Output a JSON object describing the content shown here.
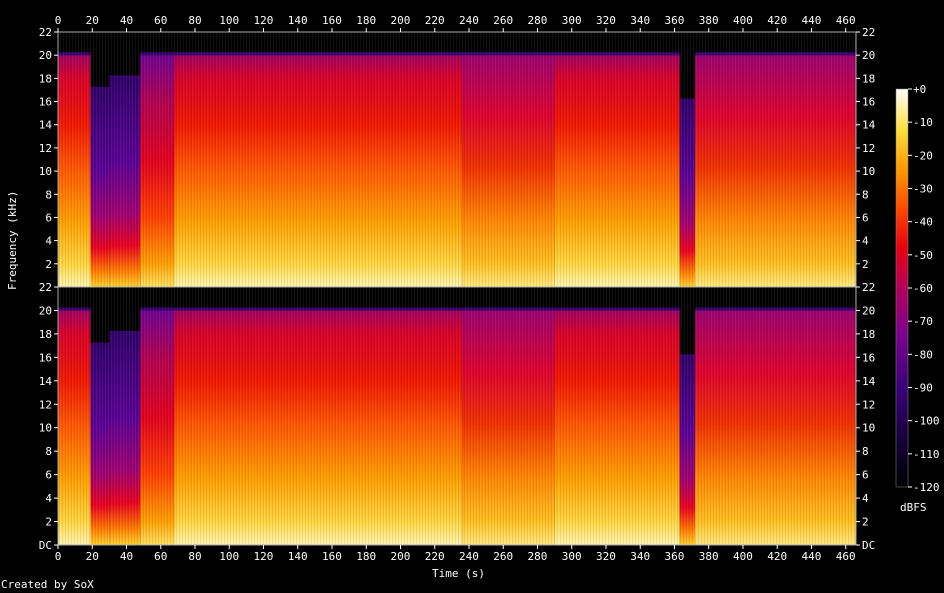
{
  "chart_data": {
    "type": "heatmap",
    "title": "",
    "xlabel": "Time (s)",
    "ylabel": "Frequency (kHz)",
    "xlim": [
      0,
      466
    ],
    "ylim": [
      0,
      22
    ],
    "x_ticks": [
      0,
      20,
      40,
      60,
      80,
      100,
      120,
      140,
      160,
      180,
      200,
      220,
      240,
      260,
      280,
      300,
      320,
      340,
      360,
      380,
      400,
      420,
      440,
      460
    ],
    "channels": [
      {
        "y_ticks": [
          "22",
          "20",
          "18",
          "16",
          "14",
          "12",
          "10",
          "8",
          "6",
          "4",
          "2"
        ]
      },
      {
        "y_ticks": [
          "22",
          "20",
          "18",
          "16",
          "14",
          "12",
          "10",
          "8",
          "6",
          "4",
          "2",
          "DC"
        ]
      }
    ],
    "colorbar": {
      "unit": "dBFS",
      "ticks": [
        "+0",
        "-10",
        "-20",
        "-30",
        "-40",
        "-50",
        "-60",
        "-70",
        "-80",
        "-90",
        "-100",
        "-110",
        "-120"
      ],
      "range": [
        -120,
        0
      ]
    },
    "segments": [
      {
        "t": [
          0,
          19
        ],
        "cutoff_khz": 20,
        "level": "loud"
      },
      {
        "t": [
          19,
          30
        ],
        "cutoff_khz": 17,
        "level": "quiet"
      },
      {
        "t": [
          30,
          48
        ],
        "cutoff_khz": 18,
        "level": "quiet"
      },
      {
        "t": [
          48,
          68
        ],
        "cutoff_khz": 20,
        "level": "mixed"
      },
      {
        "t": [
          68,
          236
        ],
        "cutoff_khz": 20,
        "level": "loud"
      },
      {
        "t": [
          236,
          290
        ],
        "cutoff_khz": 20,
        "level": "medium"
      },
      {
        "t": [
          290,
          363
        ],
        "cutoff_khz": 20,
        "level": "loud"
      },
      {
        "t": [
          363,
          372
        ],
        "cutoff_khz": 16,
        "level": "quiet"
      },
      {
        "t": [
          372,
          466
        ],
        "cutoff_khz": 20,
        "level": "medium"
      }
    ]
  },
  "footer": {
    "credit": "Created by SoX"
  },
  "colors": {
    "background": "#000000",
    "palette": [
      "#000000",
      "#0b0030",
      "#2a0064",
      "#5a0090",
      "#8a0070",
      "#c00030",
      "#e60000",
      "#ff4a00",
      "#ff9200",
      "#ffd000",
      "#fff080",
      "#ffffff"
    ]
  }
}
